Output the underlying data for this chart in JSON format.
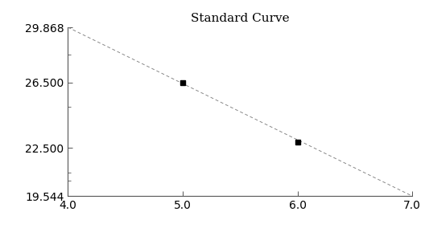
{
  "title": "Standard Curve",
  "x_data": [
    5.0,
    6.0
  ],
  "y_data": [
    26.5,
    22.83
  ],
  "line_x": [
    4.0,
    7.0
  ],
  "line_y": [
    29.868,
    19.544
  ],
  "xlim": [
    4.0,
    7.0
  ],
  "ylim": [
    19.544,
    29.868
  ],
  "xticks": [
    4.0,
    5.0,
    6.0,
    7.0
  ],
  "yticks": [
    19.544,
    22.5,
    26.5,
    29.868
  ],
  "ytick_labels": [
    "19.544",
    "22.500",
    "26.500",
    "29.868"
  ],
  "xtick_labels": [
    "4.0",
    "5.0",
    "6.0",
    "7.0"
  ],
  "minor_yticks": [
    28.2,
    25.0,
    24.0,
    21.0,
    20.5
  ],
  "line_color": "#888888",
  "marker_color": "#000000",
  "title_fontsize": 11,
  "spine_color": "#555555"
}
